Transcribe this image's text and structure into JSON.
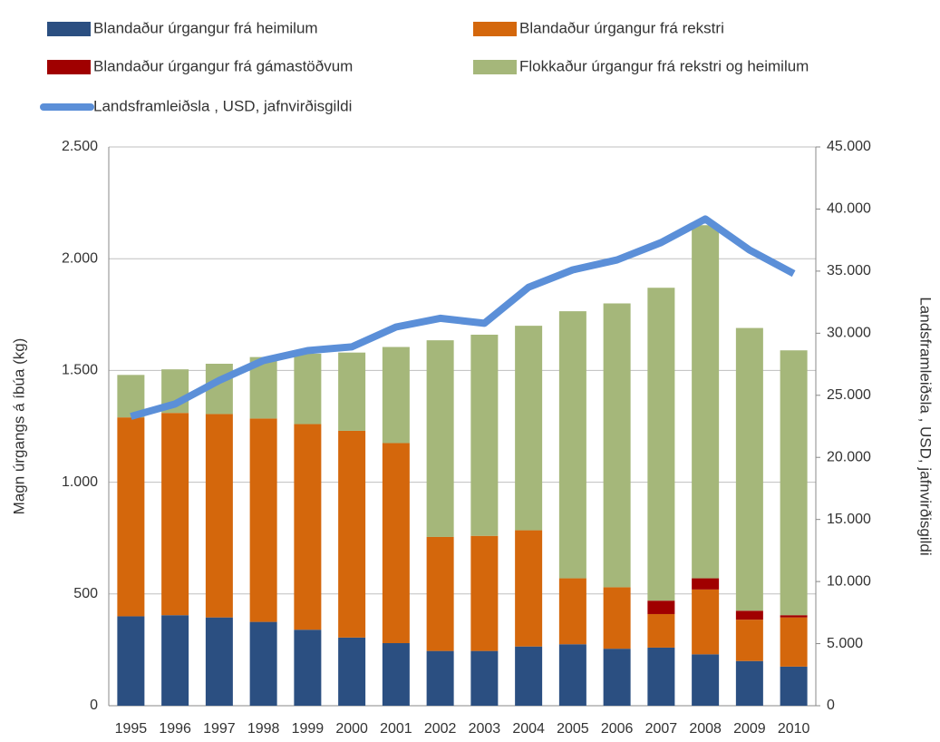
{
  "chart_data": {
    "type": "bar",
    "stacked": true,
    "categories": [
      "1995",
      "1996",
      "1997",
      "1998",
      "1999",
      "2000",
      "2001",
      "2002",
      "2003",
      "2004",
      "2005",
      "2006",
      "2007",
      "2008",
      "2009",
      "2010"
    ],
    "series": [
      {
        "name": "Blandaður úrgangur frá heimilum",
        "color": "#2b4f81",
        "values": [
          400,
          405,
          395,
          375,
          340,
          305,
          280,
          245,
          245,
          265,
          275,
          255,
          260,
          230,
          200,
          175
        ]
      },
      {
        "name": "Blandaður úrgangur frá rekstri",
        "color": "#d4670c",
        "values": [
          890,
          905,
          910,
          910,
          920,
          925,
          895,
          510,
          515,
          520,
          295,
          275,
          150,
          290,
          185,
          220
        ]
      },
      {
        "name": "Blandaður úrgangur frá gámastöðvum",
        "color": "#a00000",
        "values": [
          0,
          0,
          0,
          0,
          0,
          0,
          0,
          0,
          0,
          0,
          0,
          0,
          60,
          50,
          40,
          10
        ]
      },
      {
        "name": "Flokkaður úrgangur frá rekstri og heimilum",
        "color": "#a5b77a",
        "values": [
          190,
          195,
          225,
          275,
          315,
          350,
          430,
          880,
          900,
          915,
          1195,
          1270,
          1400,
          1580,
          1265,
          1185
        ]
      },
      {
        "name": "Landsframleiðsla , USD, jafnvirðisgildi",
        "color": "#5b8fd8",
        "type": "line",
        "axis": "y2",
        "values": [
          23300,
          24300,
          26200,
          27800,
          28600,
          28900,
          30500,
          31200,
          30800,
          33700,
          35100,
          35900,
          37300,
          39200,
          36700,
          34800
        ]
      }
    ],
    "y_label": "Magn úrgangs á íbúa (kg)",
    "y2_label": "Landsframleiðsla , USD, jafnvirðisgildi",
    "ylim": [
      0,
      2500
    ],
    "yticks": [
      0,
      500,
      {
        "value": 1000,
        "label": "1.000"
      },
      {
        "value": 1500,
        "label": "1.500"
      },
      {
        "value": 2000,
        "label": "2.000"
      },
      {
        "value": 2500,
        "label": "2.500"
      }
    ],
    "y2lim": [
      0,
      45000
    ],
    "y2ticks": [
      0,
      {
        "value": 5000,
        "label": "5.000"
      },
      {
        "value": 10000,
        "label": "10.000"
      },
      {
        "value": 15000,
        "label": "15.000"
      },
      {
        "value": 20000,
        "label": "20.000"
      },
      {
        "value": 25000,
        "label": "25.000"
      },
      {
        "value": 30000,
        "label": "30.000"
      },
      {
        "value": 35000,
        "label": "35.000"
      },
      {
        "value": 40000,
        "label": "40.000"
      },
      {
        "value": 45000,
        "label": "45.000"
      }
    ],
    "grid": true,
    "legend": "top"
  }
}
